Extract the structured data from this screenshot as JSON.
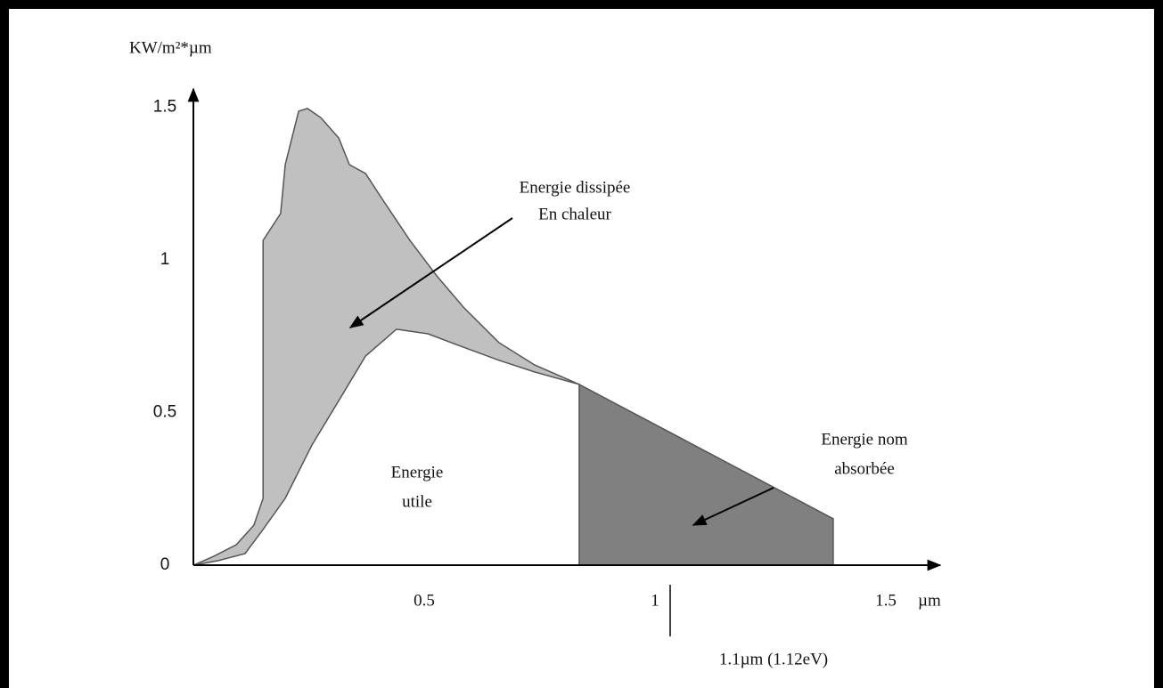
{
  "chart_data": {
    "type": "area",
    "ylabel": "KW/m²*µm",
    "xunit": "µm",
    "xlim": [
      0,
      1.62
    ],
    "ylim": [
      0,
      1.56
    ],
    "xticks": [
      0.5,
      1,
      1.5
    ],
    "yticks": [
      0,
      0.5,
      1,
      1.5
    ],
    "series": [
      {
        "color": "#c0c0c0",
        "x": [
          0,
          0.044,
          0.093,
          0.131,
          0.151,
          0.151,
          0.189,
          0.199,
          0.228,
          0.247,
          0.276,
          0.315,
          0.338,
          0.373,
          0.411,
          0.469,
          0.527,
          0.585,
          0.662,
          0.739,
          0.836
        ],
        "values": [
          0,
          0.029,
          0.067,
          0.131,
          0.219,
          1.064,
          1.152,
          1.312,
          1.487,
          1.496,
          1.466,
          1.399,
          1.312,
          1.283,
          1.195,
          1.064,
          0.948,
          0.845,
          0.729,
          0.656,
          0.592
        ]
      },
      {
        "color": "#ffffff",
        "x": [
          0,
          0.054,
          0.112,
          0.151,
          0.199,
          0.257,
          0.315,
          0.373,
          0.44,
          0.508,
          0.585,
          0.662,
          0.739,
          0.836
        ],
        "values": [
          0,
          0.015,
          0.038,
          0.117,
          0.219,
          0.394,
          0.539,
          0.685,
          0.773,
          0.758,
          0.714,
          0.671,
          0.633,
          0.592
        ]
      },
      {
        "color": "#808080",
        "x": [
          0.836,
          1.386
        ],
        "values": [
          0.592,
          0.152
        ]
      }
    ],
    "annotations": [
      {
        "lines": [
          "Energie dissipée",
          "En chaleur"
        ]
      },
      {
        "lines": [
          "Energie",
          "utile"
        ]
      },
      {
        "lines": [
          "Energie nom",
          "absorbée"
        ]
      },
      {
        "lines": [
          "1.1µm (1.12eV)"
        ]
      }
    ]
  }
}
